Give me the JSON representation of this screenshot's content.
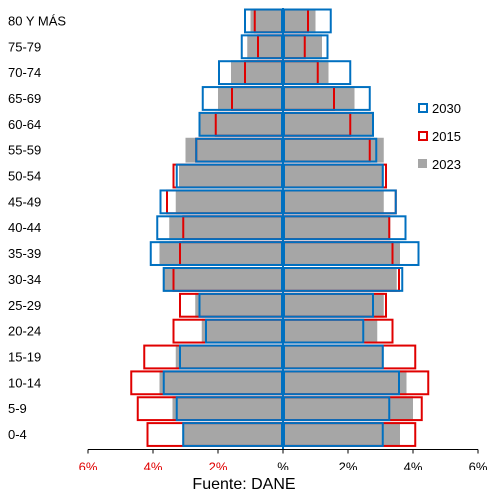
{
  "chart_data": {
    "type": "bar",
    "subtype": "population-pyramid",
    "categories": [
      "80 Y MÁS",
      "75-79",
      "70-74",
      "65-69",
      "60-64",
      "55-59",
      "50-54",
      "45-49",
      "40-44",
      "35-39",
      "30-34",
      "25-29",
      "20-24",
      "15-19",
      "10-14",
      "5-9",
      "0-4"
    ],
    "series": [
      {
        "name": "2023",
        "style": "filled",
        "color": "#a6a6a6",
        "male": [
          1.0,
          1.1,
          1.6,
          2.0,
          2.6,
          3.0,
          3.2,
          3.3,
          3.5,
          3.8,
          3.7,
          2.7,
          2.5,
          3.3,
          3.8,
          3.4,
          3.1
        ],
        "female": [
          1.0,
          1.2,
          1.4,
          2.2,
          2.8,
          3.1,
          3.1,
          3.1,
          3.3,
          3.6,
          3.5,
          3.1,
          2.9,
          3.1,
          3.8,
          4.0,
          3.6
        ]
      },
      {
        "name": "2015",
        "style": "outline",
        "color": "#e00000",
        "male": [
          0.9,
          0.8,
          1.2,
          1.6,
          2.1,
          2.7,
          3.4,
          3.6,
          3.1,
          3.2,
          3.4,
          3.2,
          3.4,
          4.3,
          4.7,
          4.5,
          4.2
        ],
        "female": [
          0.8,
          0.7,
          1.1,
          1.6,
          2.1,
          2.7,
          3.2,
          3.5,
          3.3,
          3.4,
          3.6,
          3.2,
          3.4,
          4.1,
          4.5,
          4.3,
          4.1
        ]
      },
      {
        "name": "2030",
        "style": "outline",
        "color": "#0070c0",
        "male": [
          1.2,
          1.3,
          2.0,
          2.5,
          2.6,
          2.7,
          3.3,
          3.8,
          3.9,
          4.1,
          3.7,
          2.6,
          2.4,
          3.2,
          3.7,
          3.3,
          3.1
        ],
        "female": [
          1.5,
          1.4,
          2.1,
          2.7,
          2.8,
          2.9,
          3.1,
          3.5,
          3.8,
          4.2,
          3.7,
          2.8,
          2.5,
          3.1,
          3.6,
          3.3,
          3.1
        ]
      }
    ],
    "legend": [
      {
        "label": "2030",
        "color": "#0070c0",
        "style": "outline"
      },
      {
        "label": "2015",
        "color": "#e00000",
        "style": "outline"
      },
      {
        "label": "2023",
        "color": "#a6a6a6",
        "style": "filled"
      }
    ],
    "x_ticks": [
      {
        "label": "6%",
        "value": -6,
        "color": "#e00000"
      },
      {
        "label": "4%",
        "value": -4,
        "color": "#e00000"
      },
      {
        "label": "2%",
        "value": -2,
        "color": "#e00000"
      },
      {
        "label": "%",
        "value": 0,
        "color": "#000000"
      },
      {
        "label": "2%",
        "value": 2,
        "color": "#000000"
      },
      {
        "label": "4%",
        "value": 4,
        "color": "#000000"
      },
      {
        "label": "6%",
        "value": 6,
        "color": "#000000"
      }
    ],
    "xlim": [
      -6,
      6
    ],
    "center_line_color": "#0070c0",
    "legend_position": "right"
  },
  "source_text": "Fuente: DANE"
}
